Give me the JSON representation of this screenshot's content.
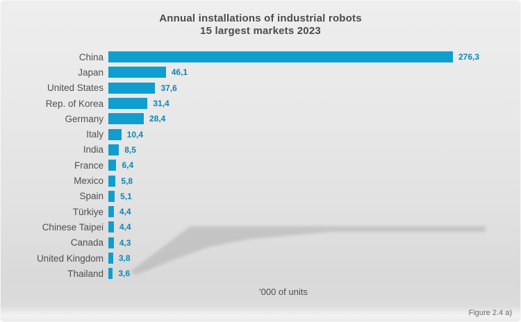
{
  "title": {
    "line1": "Annual installations of industrial robots",
    "line2": "15 largest markets 2023"
  },
  "chart_data": {
    "type": "bar",
    "orientation": "horizontal",
    "title": "Annual installations of industrial robots — 15 largest markets 2023",
    "xlabel": "'000 of units",
    "ylabel": "",
    "xlim": [
      0,
      280
    ],
    "grid": false,
    "legend": "none",
    "categories": [
      "China",
      "Japan",
      "United States",
      "Rep. of Korea",
      "Germany",
      "Italy",
      "India",
      "France",
      "Mexico",
      "Spain",
      "Türkiye",
      "Chinese Taipei",
      "Canada",
      "United Kingdom",
      "Thailand"
    ],
    "values": [
      276.3,
      46.1,
      37.6,
      31.4,
      28.4,
      10.4,
      8.5,
      6.4,
      5.8,
      5.1,
      4.4,
      4.4,
      4.3,
      3.8,
      3.6
    ],
    "value_labels": [
      "276,3",
      "46,1",
      "37,6",
      "31,4",
      "28,4",
      "10,4",
      "8,5",
      "6,4",
      "5,8",
      "5,1",
      "4,4",
      "4,4",
      "4,3",
      "3,8",
      "3,6"
    ],
    "unit_label": "'000 of units",
    "bar_color": "#0f9ecd",
    "value_label_color": "#0d86b2"
  },
  "caption": "Figure 2.4 a)"
}
